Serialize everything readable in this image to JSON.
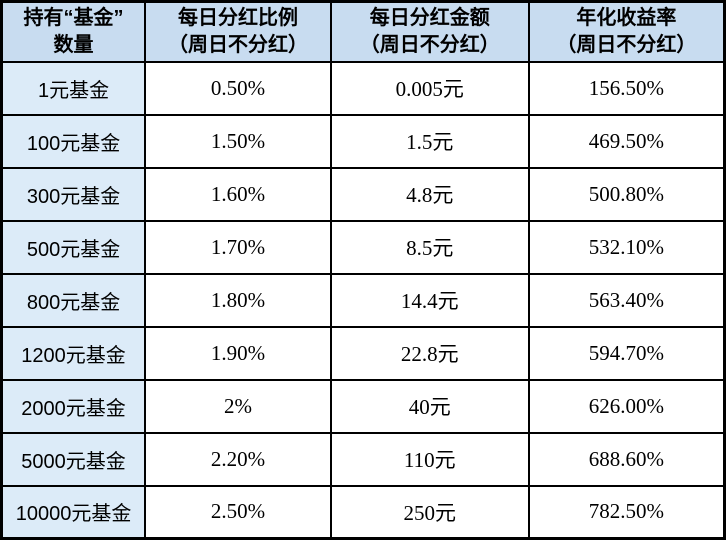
{
  "table": {
    "title_semantic": "fund-daily-dividend-table",
    "colors": {
      "header_bg": "#c8dcf0",
      "row_label_bg": "#dcebf8",
      "cell_bg": "#ffffff",
      "border": "#000000",
      "text": "#000000"
    },
    "headers": [
      {
        "line1": "持有“基金”",
        "line2": "数量"
      },
      {
        "line1": "每日分红比例",
        "line2": "（周日不分红）"
      },
      {
        "line1": "每日分红金额",
        "line2": "（周日不分红）"
      },
      {
        "line1": "年化收益率",
        "line2": "（周日不分红）"
      }
    ],
    "rows": [
      {
        "label": "1元基金",
        "ratio": "0.50%",
        "amount": "0.005元",
        "yield": "156.50%"
      },
      {
        "label": "100元基金",
        "ratio": "1.50%",
        "amount": "1.5元",
        "yield": "469.50%"
      },
      {
        "label": "300元基金",
        "ratio": "1.60%",
        "amount": "4.8元",
        "yield": "500.80%"
      },
      {
        "label": "500元基金",
        "ratio": "1.70%",
        "amount": "8.5元",
        "yield": "532.10%"
      },
      {
        "label": "800元基金",
        "ratio": "1.80%",
        "amount": "14.4元",
        "yield": "563.40%"
      },
      {
        "label": "1200元基金",
        "ratio": "1.90%",
        "amount": "22.8元",
        "yield": "594.70%"
      },
      {
        "label": "2000元基金",
        "ratio": "2%",
        "amount": "40元",
        "yield": "626.00%"
      },
      {
        "label": "5000元基金",
        "ratio": "2.20%",
        "amount": "110元",
        "yield": "688.60%"
      },
      {
        "label": "10000元基金",
        "ratio": "2.50%",
        "amount": "250元",
        "yield": "782.50%"
      }
    ]
  },
  "chart_data": {
    "type": "table",
    "columns": [
      "持有“基金”数量",
      "每日分红比例（周日不分红）",
      "每日分红金额（周日不分红）",
      "年化收益率（周日不分红）"
    ],
    "rows": [
      [
        "1元基金",
        "0.50%",
        "0.005元",
        "156.50%"
      ],
      [
        "100元基金",
        "1.50%",
        "1.5元",
        "469.50%"
      ],
      [
        "300元基金",
        "1.60%",
        "4.8元",
        "500.80%"
      ],
      [
        "500元基金",
        "1.70%",
        "8.5元",
        "532.10%"
      ],
      [
        "800元基金",
        "1.80%",
        "14.4元",
        "563.40%"
      ],
      [
        "1200元基金",
        "1.90%",
        "22.8元",
        "594.70%"
      ],
      [
        "2000元基金",
        "2%",
        "40元",
        "626.00%"
      ],
      [
        "5000元基金",
        "2.20%",
        "110元",
        "688.60%"
      ],
      [
        "10000元基金",
        "2.50%",
        "250元",
        "782.50%"
      ]
    ],
    "numeric": {
      "fund_amount_yuan": [
        1,
        100,
        300,
        500,
        800,
        1200,
        2000,
        5000,
        10000
      ],
      "daily_dividend_ratio_pct": [
        0.5,
        1.5,
        1.6,
        1.7,
        1.8,
        1.9,
        2.0,
        2.2,
        2.5
      ],
      "daily_dividend_yuan": [
        0.005,
        1.5,
        4.8,
        8.5,
        14.4,
        22.8,
        40,
        110,
        250
      ],
      "annualized_yield_pct": [
        156.5,
        469.5,
        500.8,
        532.1,
        563.4,
        594.7,
        626.0,
        688.6,
        782.5
      ]
    },
    "notes": "no dividend on Sundays (周日不分红)"
  }
}
